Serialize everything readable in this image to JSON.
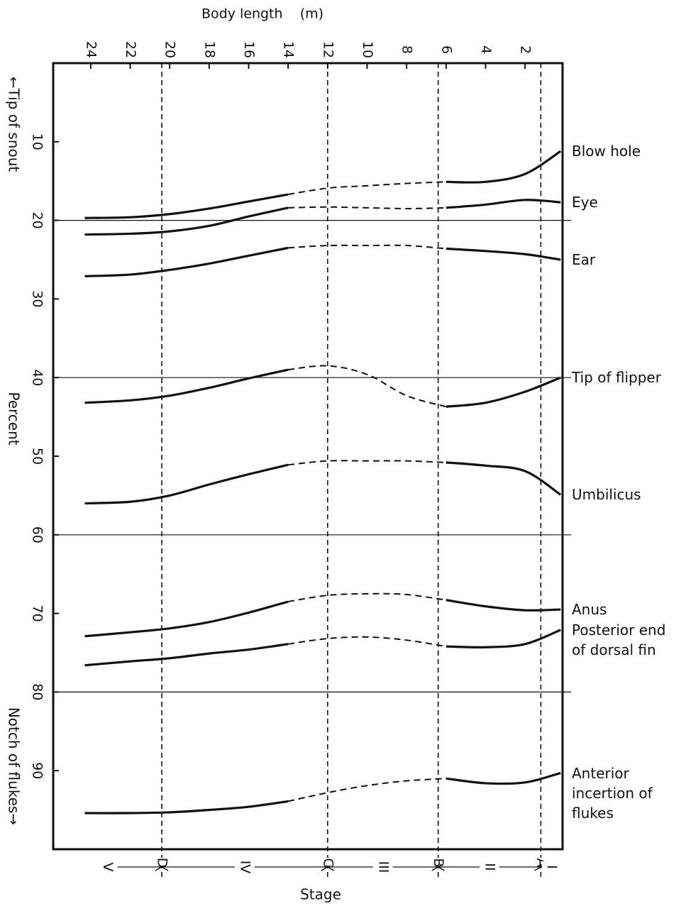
{
  "chart_data": {
    "type": "line",
    "xlabel": "Body length    (m)",
    "ylabel": "Percent",
    "ylabel_top": "←Tip of snout",
    "ylabel_bottom": "Notch of flukes→",
    "stage_label": "Stage",
    "color": "#111111",
    "xlim": [
      25.9,
      0.1
    ],
    "xticks": [
      24,
      22,
      20,
      18,
      16,
      14,
      12,
      10,
      8,
      6,
      4,
      2
    ],
    "ylim": [
      0,
      100
    ],
    "yticks": [
      10,
      20,
      30,
      40,
      50,
      60,
      70,
      80,
      90
    ],
    "hlines": [
      20,
      40,
      60,
      80
    ],
    "dashed_between": [
      14,
      6
    ],
    "stages": {
      "names": [
        "V",
        "IV",
        "III",
        "II",
        "I"
      ],
      "boundaries": [
        {
          "label": "D",
          "x": 20.4
        },
        {
          "label": "C",
          "x": 12.0
        },
        {
          "label": "B",
          "x": 6.4
        },
        {
          "label": "A",
          "x": 1.2
        }
      ]
    },
    "x": [
      24.3,
      22,
      20,
      18,
      16,
      14,
      12,
      10,
      8,
      6,
      4,
      2,
      0.2
    ],
    "series": [
      {
        "name": "Blow hole",
        "values": [
          19.7,
          19.6,
          19.2,
          18.5,
          17.6,
          16.7,
          15.9,
          15.6,
          15.3,
          15.1,
          15.1,
          14.1,
          11.2
        ]
      },
      {
        "name": "Eye",
        "values": [
          21.8,
          21.7,
          21.4,
          20.7,
          19.5,
          18.4,
          18.3,
          18.4,
          18.5,
          18.4,
          18.0,
          17.4,
          17.7
        ]
      },
      {
        "name": "Ear",
        "values": [
          27.1,
          26.9,
          26.3,
          25.5,
          24.5,
          23.5,
          23.2,
          23.2,
          23.2,
          23.6,
          23.9,
          24.3,
          25.0
        ]
      },
      {
        "name": "Tip of flipper",
        "values": [
          43.2,
          42.9,
          42.3,
          41.3,
          40.1,
          39.0,
          38.5,
          39.6,
          42.3,
          43.7,
          43.2,
          41.8,
          40.0
        ]
      },
      {
        "name": "Umbilicus",
        "values": [
          56.0,
          55.8,
          55.0,
          53.6,
          52.3,
          51.1,
          50.6,
          50.6,
          50.6,
          50.8,
          51.2,
          51.9,
          54.9
        ]
      },
      {
        "name": "Anus",
        "values": [
          72.9,
          72.4,
          71.9,
          71.1,
          69.9,
          68.5,
          67.7,
          67.5,
          67.6,
          68.3,
          69.1,
          69.6,
          69.5
        ]
      },
      {
        "name": "Posterior end\nof dorsal fin",
        "values": [
          76.6,
          76.1,
          75.7,
          75.1,
          74.6,
          73.9,
          73.2,
          73.0,
          73.4,
          74.2,
          74.3,
          73.9,
          72.1
        ]
      },
      {
        "name": "Anterior\nincertion of\nflukes",
        "values": [
          95.4,
          95.4,
          95.3,
          95.0,
          94.6,
          93.9,
          92.8,
          91.9,
          91.3,
          91.0,
          91.6,
          91.5,
          90.3
        ]
      }
    ]
  }
}
